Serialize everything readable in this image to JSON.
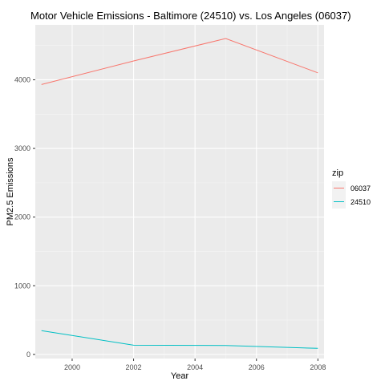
{
  "chart_data": {
    "type": "line",
    "title": "Motor Vehicle Emissions - Baltimore (24510) vs. Los Angeles (06037)",
    "xlabel": "Year",
    "ylabel": "PM2.5 Emissions",
    "x": [
      1999,
      2002,
      2005,
      2008
    ],
    "xlim": [
      1998.8,
      2008.2
    ],
    "ylim": [
      -60,
      4800
    ],
    "xticks": [
      2000,
      2002,
      2004,
      2006,
      2008
    ],
    "yticks": [
      0,
      1000,
      2000,
      3000,
      4000
    ],
    "grid": true,
    "legend": {
      "title": "zip",
      "position": "right"
    },
    "series": [
      {
        "name": "06037",
        "color": "#F8766D",
        "values": [
          3931,
          4274,
          4601,
          4101
        ]
      },
      {
        "name": "24510",
        "color": "#00BFC4",
        "values": [
          347,
          134,
          130,
          88
        ]
      }
    ]
  }
}
